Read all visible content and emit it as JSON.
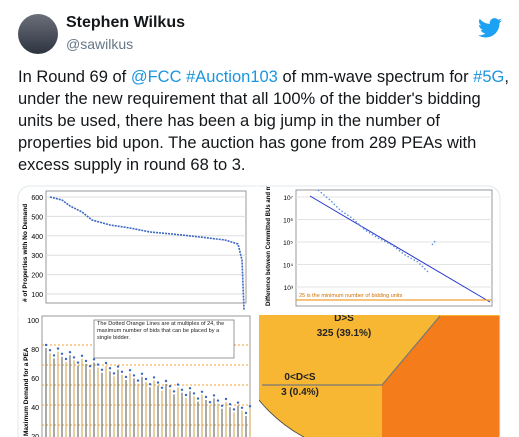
{
  "author": {
    "name": "Stephen Wilkus",
    "handle": "@sawilkus"
  },
  "tweet": {
    "lines": [
      [
        {
          "text": "In Round 69 of "
        },
        {
          "text": "@FCC",
          "link": true
        },
        {
          "text": " "
        },
        {
          "text": "#Auction103",
          "link": true
        },
        {
          "text": " of mm-wave spectrum for "
        },
        {
          "text": "#5G",
          "link": true
        },
        {
          "text": ","
        }
      ],
      [
        {
          "text": "under the new requirement that all 100% of the bidder's bidding"
        }
      ],
      [
        {
          "text": "units be used, there has been a big jump in the number of"
        }
      ],
      [
        {
          "text": "properties bid upon. The auction has gone from 289 PEAs with"
        }
      ],
      [
        {
          "text": "excess supply in round  68 to 3."
        }
      ]
    ]
  },
  "images": [
    {
      "y_label": "# of Properties with No Demand",
      "ticks": [
        "600",
        "500",
        "400",
        "300",
        "200",
        "100"
      ]
    },
    {
      "y_label": "Difference between Committed BUs and minimum winnable BUs",
      "ticks": [
        "10⁷",
        "10⁶",
        "10⁵",
        "10⁴",
        "10³"
      ],
      "note": "25 is the minimum number of bidding units"
    },
    {
      "y_label": "Maximum Demand for a PEA",
      "ticks": [
        "100",
        "80",
        "60",
        "40",
        "20"
      ],
      "note": "The Dotted Orange Lines are at multiples of 24, the maximum number of bids that can be placed by a single bidder."
    },
    {
      "slices": [
        {
          "label": "D>S",
          "value_label": "325 (39.1%)"
        },
        {
          "label": "0<D<S",
          "value_label": "3 (0.4%)"
        }
      ]
    }
  ]
}
